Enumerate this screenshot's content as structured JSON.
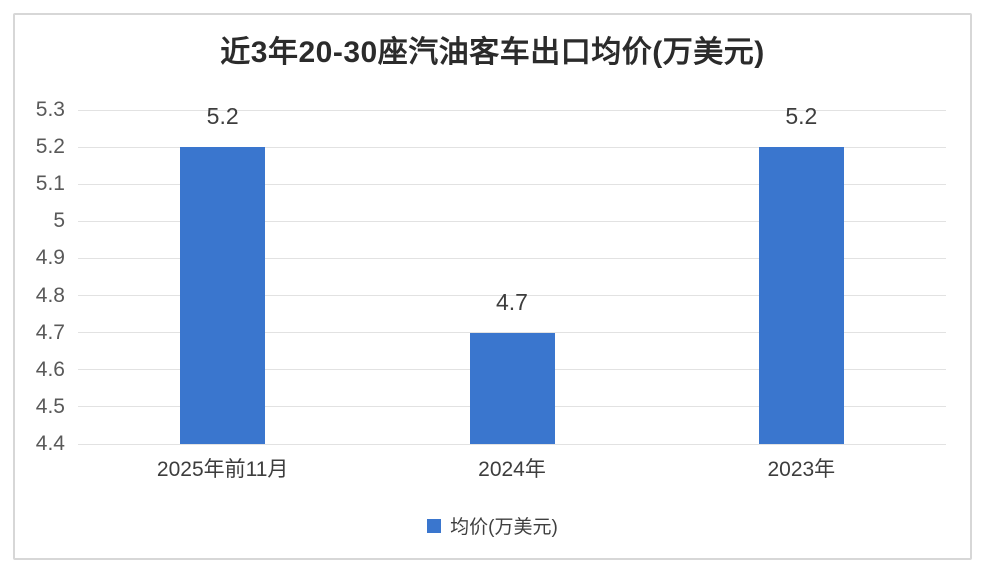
{
  "chart_data": {
    "type": "bar",
    "title": "近3年20-30座汽油客车出口均价(万美元)",
    "categories": [
      "2025年前11月",
      "2024年",
      "2023年"
    ],
    "series": [
      {
        "name": "均价(万美元)",
        "values": [
          5.2,
          4.7,
          5.2
        ]
      }
    ],
    "values": [
      5.2,
      4.7,
      5.2
    ],
    "value_labels": [
      "5.2",
      "4.7",
      "5.2"
    ],
    "legend": [
      "均价(万美元)"
    ],
    "legend_position": "bottom",
    "xlabel": "",
    "ylabel": "",
    "ylim": [
      4.4,
      5.3
    ],
    "yticks": [
      "5.3",
      "5.2",
      "5.1",
      "5",
      "4.9",
      "4.8",
      "4.7",
      "4.6",
      "4.5",
      "4.4"
    ],
    "grid": "horizontal",
    "colors": {
      "bar": "#3a76ce"
    }
  }
}
